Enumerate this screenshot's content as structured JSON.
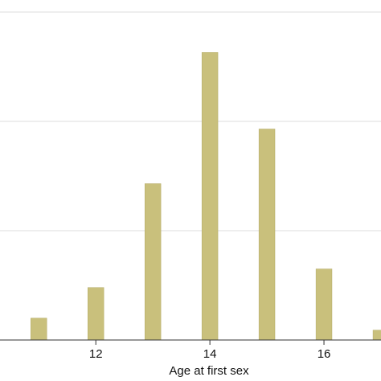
{
  "chart_data": {
    "type": "bar",
    "xlabel": "Age at first sex",
    "x": [
      11,
      12,
      13,
      14,
      15,
      16,
      17
    ],
    "values": [
      0.2,
      0.48,
      1.43,
      2.63,
      1.93,
      0.65,
      0.09
    ],
    "color": "#c9c07c",
    "xlim": [
      10.32,
      17
    ],
    "xticks": [
      12,
      14,
      16
    ],
    "ylim": [
      0,
      3.11
    ],
    "ygrid": [
      1,
      2,
      3
    ],
    "grid": true
  }
}
